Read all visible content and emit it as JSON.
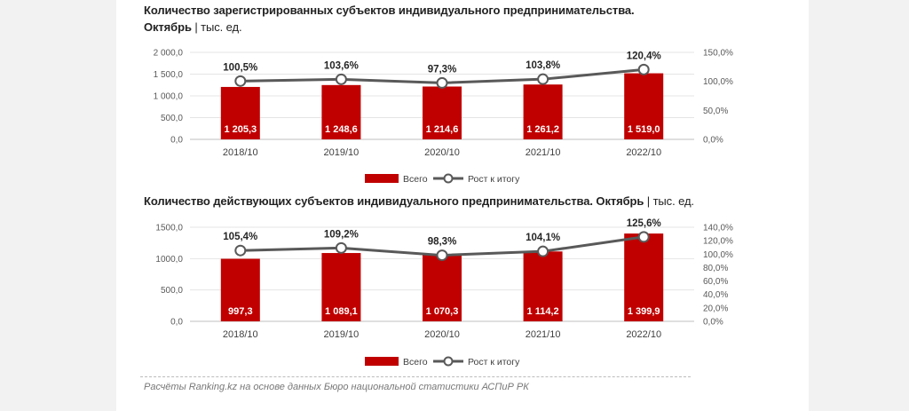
{
  "chart_data": [
    {
      "type": "bar",
      "title": "Количество зарегистрированных субъектов индивидуального предпринимательства.",
      "title_line2": "Октябрь",
      "unit": "тыс. ед.",
      "categories": [
        "2018/10",
        "2019/10",
        "2020/10",
        "2021/10",
        "2022/10"
      ],
      "series": [
        {
          "name": "Всего",
          "values": [
            1205.3,
            1248.6,
            1214.6,
            1261.2,
            1519.0
          ],
          "labels": [
            "1 205,3",
            "1 248,6",
            "1 214,6",
            "1 261,2",
            "1 519,0"
          ],
          "color": "#c00000",
          "axis": "left"
        },
        {
          "name": "Рост к итогу",
          "values": [
            100.5,
            103.6,
            97.3,
            103.8,
            120.4
          ],
          "labels": [
            "100,5%",
            "103,6%",
            "97,3%",
            "103,8%",
            "120,4%"
          ],
          "color": "#595959",
          "axis": "right",
          "kind": "line"
        }
      ],
      "y_left": {
        "min": 0,
        "max": 2000,
        "ticks": [
          "0,0",
          "500,0",
          "1 000,0",
          "1 500,0",
          "2 000,0"
        ]
      },
      "y_right": {
        "min": 0,
        "max": 150,
        "ticks": [
          "0,0%",
          "50,0%",
          "100,0%",
          "150,0%"
        ]
      },
      "grid": true,
      "legend": "bottom"
    },
    {
      "type": "bar",
      "title": "Количество действующих субъектов индивидуального предпринимательства. Октябрь",
      "unit": "тыс. ед.",
      "categories": [
        "2018/10",
        "2019/10",
        "2020/10",
        "2021/10",
        "2022/10"
      ],
      "series": [
        {
          "name": "Всего",
          "values": [
            997.3,
            1089.1,
            1070.3,
            1114.2,
            1399.9
          ],
          "labels": [
            "997,3",
            "1 089,1",
            "1 070,3",
            "1 114,2",
            "1 399,9"
          ],
          "color": "#c00000",
          "axis": "left"
        },
        {
          "name": "Рост к итогу",
          "values": [
            105.4,
            109.2,
            98.3,
            104.1,
            125.6
          ],
          "labels": [
            "105,4%",
            "109,2%",
            "98,3%",
            "104,1%",
            "125,6%"
          ],
          "color": "#595959",
          "axis": "right",
          "kind": "line"
        }
      ],
      "y_left": {
        "min": 0,
        "max": 1500,
        "ticks": [
          "0,0",
          "500,0",
          "1000,0",
          "1500,0"
        ]
      },
      "y_right": {
        "min": 0,
        "max": 140,
        "ticks": [
          "0,0%",
          "20,0%",
          "40,0%",
          "60,0%",
          "80,0%",
          "100,0%",
          "120,0%",
          "140,0%"
        ]
      },
      "grid": true,
      "legend": "bottom"
    }
  ],
  "footer": "Расчёты Ranking.kz на основе данных Бюро национальной статистики АСПиР РК",
  "colors": {
    "bar": "#c00000",
    "line": "#595959",
    "marker_fill": "#ffffff"
  }
}
